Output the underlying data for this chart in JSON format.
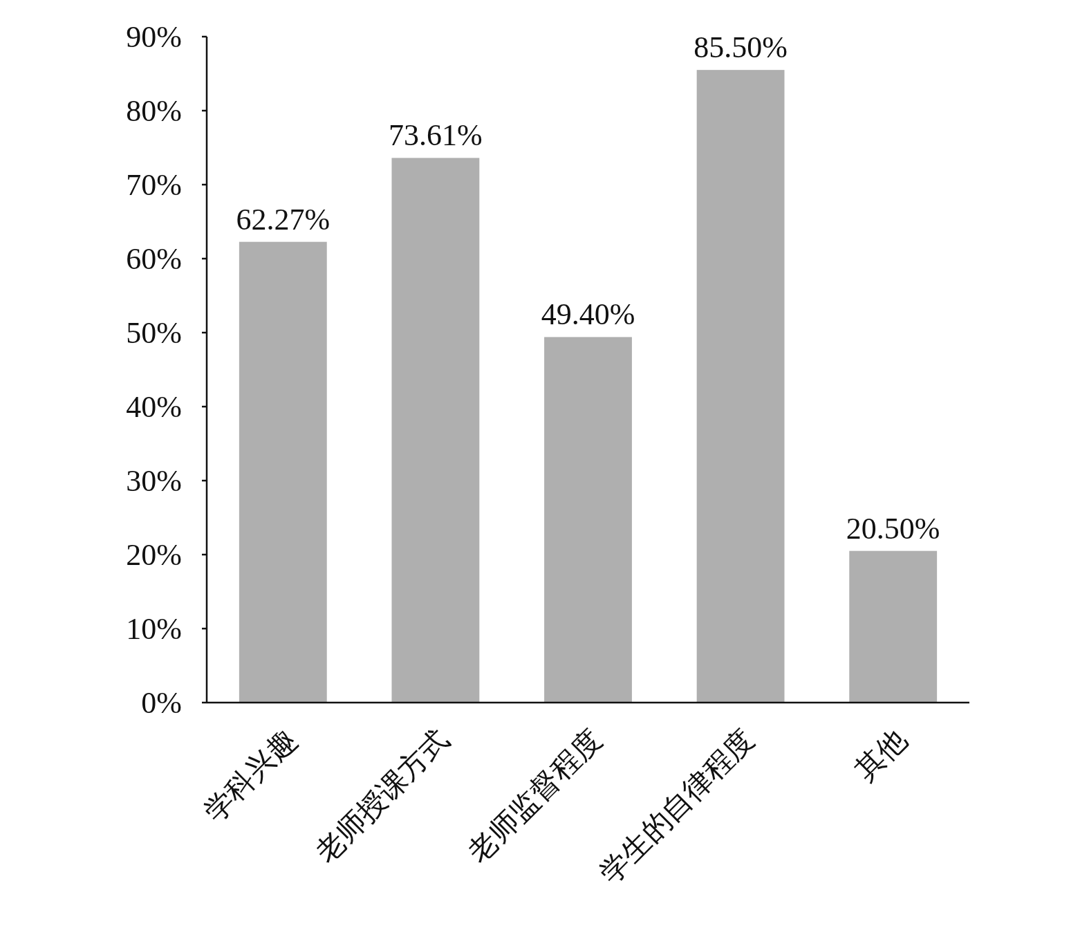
{
  "chart_data": {
    "type": "bar",
    "categories": [
      "学科兴趣",
      "老师授课方式",
      "老师监督程度",
      "学生的自律程度",
      "其他"
    ],
    "values": [
      62.27,
      73.61,
      49.4,
      85.5,
      20.5
    ],
    "value_labels": [
      "62.27%",
      "73.61%",
      "49.40%",
      "85.50%",
      "20.50%"
    ],
    "color": "#afafaf",
    "ylim": [
      0,
      90
    ],
    "yticks": [
      {
        "value": 0,
        "label": "0%"
      },
      {
        "value": 10,
        "label": "10%"
      },
      {
        "value": 20,
        "label": "20%"
      },
      {
        "value": 30,
        "label": "30%"
      },
      {
        "value": 40,
        "label": "40%"
      },
      {
        "value": 50,
        "label": "50%"
      },
      {
        "value": 60,
        "label": "60%"
      },
      {
        "value": 70,
        "label": "70%"
      },
      {
        "value": 80,
        "label": "80%"
      },
      {
        "value": 90,
        "label": "90%"
      }
    ]
  }
}
